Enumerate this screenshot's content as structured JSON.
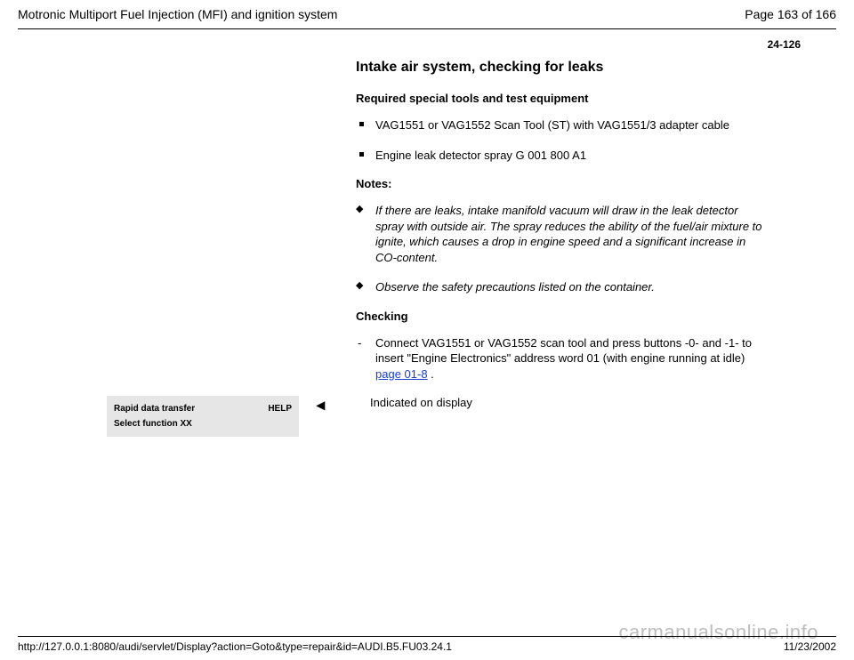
{
  "header": {
    "doc_title": "Motronic Multiport Fuel Injection (MFI) and ignition system",
    "page_of": "Page 163 of 166",
    "page_code": "24-126"
  },
  "section": {
    "title": "Intake air system, checking for leaks",
    "tools_heading": "Required special tools and test equipment",
    "tools": [
      "VAG1551 or VAG1552 Scan Tool (ST) with VAG1551/3 adapter cable",
      "Engine leak detector spray G 001 800 A1"
    ],
    "notes_heading": "Notes:",
    "notes": [
      "If there are leaks, intake manifold vacuum will draw in the leak detector spray with outside air. The spray reduces the ability of the fuel/air mixture to ignite, which causes a drop in engine speed and a significant increase in CO-content.",
      "Observe the safety precautions listed on the container."
    ],
    "checking_heading": "Checking",
    "checking_step_prefix": "Connect VAG1551 or VAG1552 scan tool and press buttons -0- and -1- to insert \"Engine Electronics\" address word 01 (with engine running at idle)  ",
    "checking_link": "page 01-8",
    "checking_step_suffix": " ."
  },
  "display": {
    "line1_left": "Rapid data transfer",
    "line1_right": "HELP",
    "line2": "Select function XX",
    "arrow": "◂",
    "indicated": "Indicated on display"
  },
  "footer": {
    "url": "http://127.0.0.1:8080/audi/servlet/Display?action=Goto&type=repair&id=AUDI.B5.FU03.24.1",
    "date": "11/23/2002"
  },
  "watermark": "carmanualsonline.info",
  "colors": {
    "text": "#000000",
    "link": "#1a3fd1",
    "box_bg": "#e6e6e6",
    "watermark": "#bdbdbd",
    "background": "#ffffff"
  }
}
